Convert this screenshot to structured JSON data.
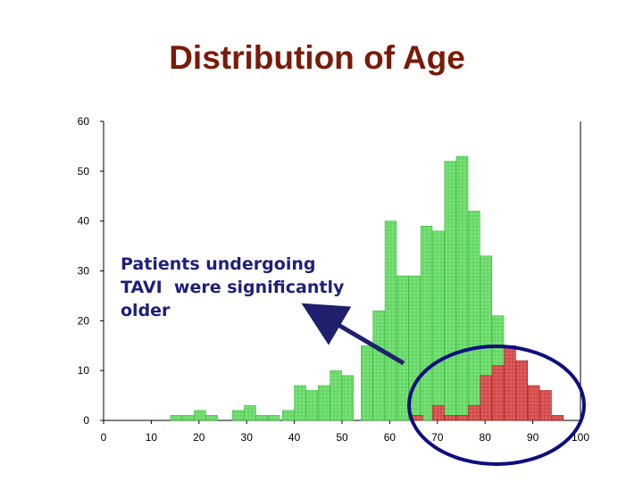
{
  "title": "Distribution of Age",
  "annotation": {
    "lines": [
      "Patients undergoing",
      "TAVI  were significantly",
      "older"
    ]
  },
  "colors": {
    "title": "#7a1a08",
    "annotation": "#1f1f7a",
    "all_patients_bar": "#7de37d",
    "all_patients_edge": "#3fbf3f",
    "tavi_bar": "#e06060",
    "tavi_edge": "#b02020",
    "highlight_circle": "#0e0e80",
    "arrow": "#1f1f6e"
  },
  "chart_data": {
    "type": "bar",
    "title": "",
    "xlabel": "",
    "ylabel": "",
    "xlim": [
      0,
      100
    ],
    "ylim": [
      0,
      60
    ],
    "x_ticks": [
      0,
      10,
      20,
      30,
      40,
      50,
      60,
      70,
      80,
      90,
      100
    ],
    "y_ticks": [
      0,
      10,
      20,
      30,
      40,
      50,
      60
    ],
    "bin_width": 2.5,
    "grid": false,
    "legend": "none",
    "series": [
      {
        "bins": [
          {
            "x0": 14,
            "y": 1
          },
          {
            "x0": 16.5,
            "y": 1
          },
          {
            "x0": 19,
            "y": 2
          },
          {
            "x0": 21.5,
            "y": 1
          },
          {
            "x0": 27,
            "y": 2
          },
          {
            "x0": 29.5,
            "y": 3
          },
          {
            "x0": 32,
            "y": 1
          },
          {
            "x0": 34.5,
            "y": 1
          },
          {
            "x0": 37.5,
            "y": 2
          },
          {
            "x0": 40,
            "y": 7
          },
          {
            "x0": 42.5,
            "y": 6
          },
          {
            "x0": 45,
            "y": 7
          },
          {
            "x0": 47.5,
            "y": 10
          },
          {
            "x0": 50,
            "y": 9
          },
          {
            "x0": 54,
            "y": 15
          },
          {
            "x0": 56.5,
            "y": 22
          },
          {
            "x0": 59,
            "y": 40
          },
          {
            "x0": 61.5,
            "y": 29
          },
          {
            "x0": 64,
            "y": 29
          },
          {
            "x0": 66.5,
            "y": 39
          },
          {
            "x0": 69,
            "y": 38
          },
          {
            "x0": 71.5,
            "y": 52
          },
          {
            "x0": 74,
            "y": 53
          },
          {
            "x0": 76.5,
            "y": 42
          },
          {
            "x0": 79,
            "y": 33
          },
          {
            "x0": 81.5,
            "y": 21
          },
          {
            "x0": 84,
            "y": 11
          }
        ]
      },
      {
        "bins": [
          {
            "x0": 64.5,
            "y": 1
          },
          {
            "x0": 69,
            "y": 3
          },
          {
            "x0": 71.5,
            "y": 1
          },
          {
            "x0": 74,
            "y": 1
          },
          {
            "x0": 76.5,
            "y": 3
          },
          {
            "x0": 79,
            "y": 9
          },
          {
            "x0": 81.5,
            "y": 11
          },
          {
            "x0": 84,
            "y": 15
          },
          {
            "x0": 86.5,
            "y": 12
          },
          {
            "x0": 89,
            "y": 7
          },
          {
            "x0": 91.5,
            "y": 6
          },
          {
            "x0": 94,
            "y": 1
          }
        ]
      }
    ]
  }
}
